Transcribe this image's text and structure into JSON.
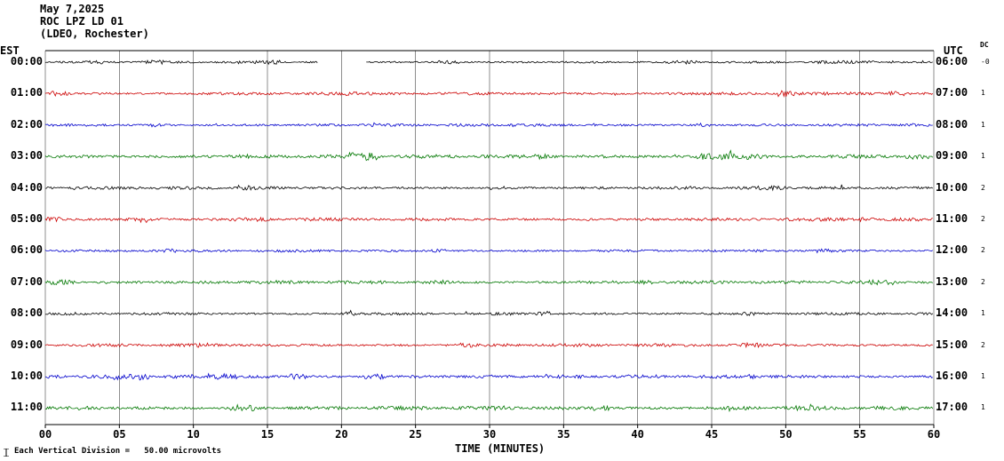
{
  "title": {
    "date": "May 7,2025",
    "station": "ROC LPZ LD 01",
    "location": "(LDEO, Rochester)"
  },
  "axes": {
    "left_header": "EST",
    "right_header": "UTC",
    "dc_header": "DC",
    "time_axis_label": "TIME (MINUTES)"
  },
  "footer": {
    "scale_note": "Each Vertical Division =   50.00 microvolts"
  },
  "xticks": [
    "00",
    "05",
    "10",
    "15",
    "20",
    "25",
    "30",
    "35",
    "40",
    "45",
    "50",
    "55",
    "60"
  ],
  "chart_data": {
    "type": "line",
    "title": "ROC LPZ LD 01 helicorder seismogram, May 7,2025 (LDEO, Rochester)",
    "xlabel": "TIME (MINUTES)",
    "x_range_minutes": [
      0,
      60
    ],
    "x_tick_interval_minutes": 5,
    "vertical_division_microvolts": 50.0,
    "timezone_left": "EST",
    "timezone_right": "UTC",
    "grid": "vertical lines every 5 minutes",
    "colors_cycle": [
      "#000000",
      "#cc0000",
      "#0000cc",
      "#007700"
    ],
    "rows": [
      {
        "est": "00:00",
        "utc": "06:00",
        "dc": "-0",
        "color": "#000000",
        "amp": 1.3,
        "gaps": [
          [
            18.4,
            21.6
          ]
        ],
        "bursts": [
          [
            3,
            4.2,
            2.2
          ],
          [
            6.5,
            8,
            2.6
          ],
          [
            14,
            16,
            2.4
          ],
          [
            26.5,
            28,
            2.0
          ],
          [
            42,
            44,
            2.0
          ],
          [
            52,
            56,
            1.8
          ]
        ]
      },
      {
        "est": "01:00",
        "utc": "07:00",
        "dc": "1",
        "color": "#cc0000",
        "amp": 1.8,
        "bursts": [
          [
            0.3,
            1.5,
            2.8
          ],
          [
            20,
            21,
            2.4
          ],
          [
            49.5,
            50.6,
            3.4
          ],
          [
            57,
            58.2,
            2.5
          ]
        ]
      },
      {
        "est": "02:00",
        "utc": "08:00",
        "dc": "1",
        "color": "#0000cc",
        "amp": 1.6,
        "bursts": [
          [
            7,
            8,
            2.2
          ],
          [
            22,
            23,
            2.5
          ],
          [
            31,
            32,
            2.2
          ],
          [
            44,
            45,
            2.2
          ]
        ]
      },
      {
        "est": "03:00",
        "utc": "09:00",
        "dc": "1",
        "color": "#007700",
        "amp": 2.2,
        "bursts": [
          [
            13,
            14,
            2.8
          ],
          [
            20.5,
            22.5,
            4.4
          ],
          [
            33,
            34,
            2.8
          ],
          [
            44,
            48.5,
            3.6
          ],
          [
            58,
            60,
            3.0
          ]
        ]
      },
      {
        "est": "04:00",
        "utc": "10:00",
        "dc": "2",
        "color": "#000000",
        "amp": 1.7,
        "bursts": [
          [
            13,
            14.2,
            2.6
          ],
          [
            30,
            31,
            2.2
          ],
          [
            48,
            50,
            2.4
          ]
        ]
      },
      {
        "est": "05:00",
        "utc": "11:00",
        "dc": "2",
        "color": "#cc0000",
        "amp": 1.9,
        "bursts": [
          [
            0,
            1,
            2.6
          ],
          [
            14,
            15.2,
            3.2
          ],
          [
            36,
            37,
            2.5
          ],
          [
            55,
            56,
            2.4
          ]
        ]
      },
      {
        "est": "06:00",
        "utc": "12:00",
        "dc": "2",
        "color": "#0000cc",
        "amp": 1.5,
        "bursts": [
          [
            8,
            9,
            2.2
          ],
          [
            26,
            27,
            2.0
          ],
          [
            52,
            53.2,
            2.2
          ]
        ]
      },
      {
        "est": "07:00",
        "utc": "13:00",
        "dc": "2",
        "color": "#007700",
        "amp": 2.0,
        "bursts": [
          [
            0,
            2,
            2.8
          ],
          [
            26,
            27.2,
            2.5
          ],
          [
            40,
            41,
            2.5
          ],
          [
            55,
            57,
            2.8
          ]
        ]
      },
      {
        "est": "08:00",
        "utc": "14:00",
        "dc": "1",
        "color": "#000000",
        "amp": 1.6,
        "bursts": [
          [
            20,
            21,
            2.2
          ],
          [
            33,
            34,
            2.2
          ],
          [
            47,
            48,
            2.0
          ]
        ]
      },
      {
        "est": "09:00",
        "utc": "15:00",
        "dc": "2",
        "color": "#cc0000",
        "amp": 1.8,
        "bursts": [
          [
            10,
            11,
            2.4
          ],
          [
            28,
            29.2,
            2.4
          ],
          [
            47,
            48.2,
            2.6
          ]
        ]
      },
      {
        "est": "10:00",
        "utc": "16:00",
        "dc": "1",
        "color": "#0000cc",
        "amp": 2.0,
        "bursts": [
          [
            4.5,
            7,
            3.8
          ],
          [
            11,
            13,
            3.6
          ],
          [
            16.5,
            17.6,
            3.0
          ],
          [
            21.5,
            23,
            3.2
          ],
          [
            47,
            48,
            2.6
          ]
        ]
      },
      {
        "est": "11:00",
        "utc": "17:00",
        "dc": "1",
        "color": "#007700",
        "amp": 2.2,
        "bursts": [
          [
            12.5,
            14.2,
            3.6
          ],
          [
            30,
            31,
            2.6
          ],
          [
            37,
            38.2,
            2.8
          ],
          [
            50,
            52,
            2.6
          ]
        ]
      }
    ]
  }
}
